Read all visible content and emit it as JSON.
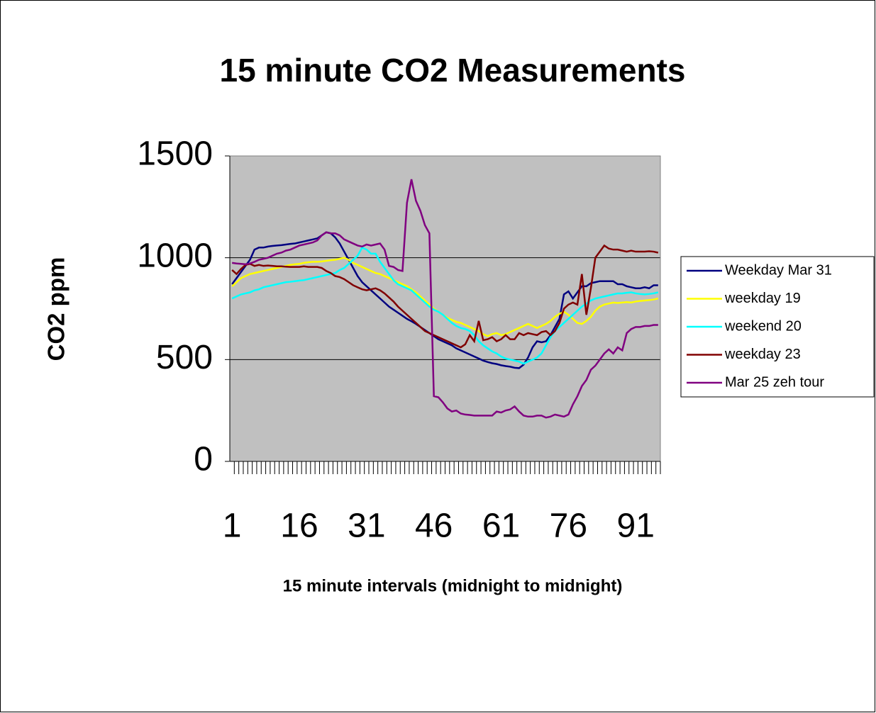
{
  "chart_data": {
    "type": "line",
    "title": "15 minute CO2 Measurements",
    "x_label": "15 minute intervals (midnight to midnight)",
    "y_label": "CO2 ppm",
    "categories": [
      "1",
      null,
      null,
      null,
      null,
      null,
      null,
      null,
      null,
      null,
      null,
      null,
      null,
      null,
      null,
      "16",
      null,
      null,
      null,
      null,
      null,
      null,
      null,
      null,
      null,
      null,
      null,
      null,
      null,
      null,
      "31",
      null,
      null,
      null,
      null,
      null,
      null,
      null,
      null,
      null,
      null,
      null,
      null,
      null,
      null,
      "46",
      null,
      null,
      null,
      null,
      null,
      null,
      null,
      null,
      null,
      null,
      null,
      null,
      null,
      null,
      "61",
      null,
      null,
      null,
      null,
      null,
      null,
      null,
      null,
      null,
      null,
      null,
      null,
      null,
      null,
      "76",
      null,
      null,
      null,
      null,
      null,
      null,
      null,
      null,
      null,
      null,
      null,
      null,
      null,
      null,
      "91",
      null,
      null,
      null,
      null,
      null
    ],
    "ylim": [
      0,
      1500
    ],
    "yticks": [
      0,
      500,
      1000,
      1500
    ],
    "grid": true,
    "legend": "right",
    "series": [
      {
        "name": "Weekday Mar 31",
        "color": "#000080",
        "values": [
          870,
          900,
          930,
          960,
          990,
          1040,
          1050,
          1050,
          1055,
          1058,
          1060,
          1062,
          1065,
          1068,
          1070,
          1075,
          1080,
          1085,
          1090,
          1095,
          1110,
          1125,
          1120,
          1100,
          1070,
          1030,
          990,
          950,
          910,
          880,
          860,
          840,
          820,
          800,
          780,
          760,
          745,
          730,
          715,
          700,
          688,
          675,
          660,
          645,
          630,
          615,
          600,
          590,
          580,
          570,
          555,
          545,
          535,
          525,
          515,
          505,
          495,
          488,
          482,
          478,
          472,
          468,
          465,
          460,
          458,
          475,
          510,
          560,
          590,
          585,
          590,
          620,
          660,
          700,
          820,
          835,
          800,
          830,
          860,
          860,
          875,
          880,
          885,
          885,
          885,
          885,
          870,
          870,
          860,
          855,
          850,
          850,
          855,
          850,
          865,
          865
        ]
      },
      {
        "name": "weekday 19",
        "color": "#ffff00",
        "values": [
          860,
          880,
          900,
          910,
          920,
          925,
          930,
          935,
          940,
          945,
          950,
          955,
          960,
          965,
          968,
          970,
          975,
          978,
          980,
          980,
          982,
          985,
          988,
          990,
          995,
          1000,
          990,
          975,
          965,
          955,
          945,
          935,
          925,
          920,
          910,
          900,
          890,
          880,
          870,
          860,
          845,
          830,
          810,
          790,
          770,
          750,
          735,
          720,
          705,
          695,
          685,
          680,
          670,
          660,
          650,
          640,
          625,
          615,
          625,
          630,
          620,
          625,
          635,
          645,
          655,
          665,
          675,
          665,
          655,
          665,
          675,
          690,
          710,
          725,
          735,
          720,
          700,
          680,
          675,
          690,
          710,
          740,
          760,
          770,
          775,
          780,
          778,
          780,
          782,
          780,
          785,
          788,
          790,
          792,
          795,
          800
        ]
      },
      {
        "name": "weekend 20",
        "color": "#00ffff",
        "values": [
          800,
          810,
          820,
          825,
          830,
          840,
          845,
          855,
          860,
          865,
          870,
          875,
          880,
          882,
          885,
          888,
          890,
          895,
          900,
          905,
          910,
          915,
          920,
          925,
          940,
          950,
          970,
          990,
          1010,
          1050,
          1040,
          1020,
          1020,
          980,
          950,
          920,
          890,
          870,
          860,
          850,
          840,
          820,
          800,
          780,
          760,
          745,
          735,
          720,
          700,
          680,
          665,
          655,
          650,
          640,
          620,
          590,
          570,
          555,
          540,
          530,
          515,
          505,
          500,
          495,
          490,
          480,
          490,
          500,
          510,
          530,
          570,
          610,
          640,
          660,
          680,
          700,
          720,
          740,
          760,
          775,
          790,
          800,
          805,
          810,
          815,
          820,
          825,
          825,
          828,
          830,
          825,
          822,
          820,
          822,
          825,
          830
        ]
      },
      {
        "name": "weekday 23",
        "color": "#800000",
        "values": [
          940,
          920,
          945,
          965,
          970,
          960,
          965,
          960,
          962,
          960,
          958,
          958,
          956,
          955,
          955,
          955,
          958,
          955,
          955,
          955,
          950,
          935,
          925,
          910,
          905,
          895,
          880,
          865,
          855,
          845,
          840,
          845,
          850,
          840,
          825,
          805,
          785,
          760,
          740,
          720,
          700,
          680,
          660,
          640,
          630,
          620,
          610,
          600,
          590,
          580,
          570,
          560,
          575,
          620,
          590,
          690,
          595,
          600,
          610,
          590,
          600,
          620,
          600,
          600,
          630,
          620,
          630,
          625,
          620,
          635,
          640,
          620,
          640,
          680,
          750,
          770,
          780,
          770,
          920,
          720,
          850,
          1000,
          1030,
          1060,
          1045,
          1040,
          1040,
          1035,
          1030,
          1035,
          1030,
          1030,
          1030,
          1032,
          1030,
          1025
        ]
      },
      {
        "name": "Mar 25 zeh tour",
        "color": "#800080",
        "values": [
          975,
          972,
          970,
          968,
          972,
          980,
          990,
          995,
          1000,
          1010,
          1020,
          1025,
          1035,
          1040,
          1050,
          1060,
          1065,
          1070,
          1075,
          1085,
          1110,
          1125,
          1120,
          1120,
          1110,
          1090,
          1080,
          1070,
          1060,
          1055,
          1065,
          1060,
          1065,
          1070,
          1040,
          960,
          955,
          940,
          935,
          1270,
          1385,
          1280,
          1230,
          1160,
          1120,
          320,
          315,
          290,
          260,
          245,
          250,
          235,
          230,
          228,
          225,
          225,
          225,
          225,
          225,
          245,
          240,
          250,
          255,
          270,
          245,
          225,
          220,
          220,
          225,
          225,
          215,
          220,
          230,
          225,
          220,
          230,
          280,
          320,
          370,
          400,
          450,
          470,
          500,
          530,
          550,
          530,
          560,
          545,
          630,
          650,
          660,
          660,
          665,
          665,
          670,
          670
        ]
      }
    ]
  }
}
